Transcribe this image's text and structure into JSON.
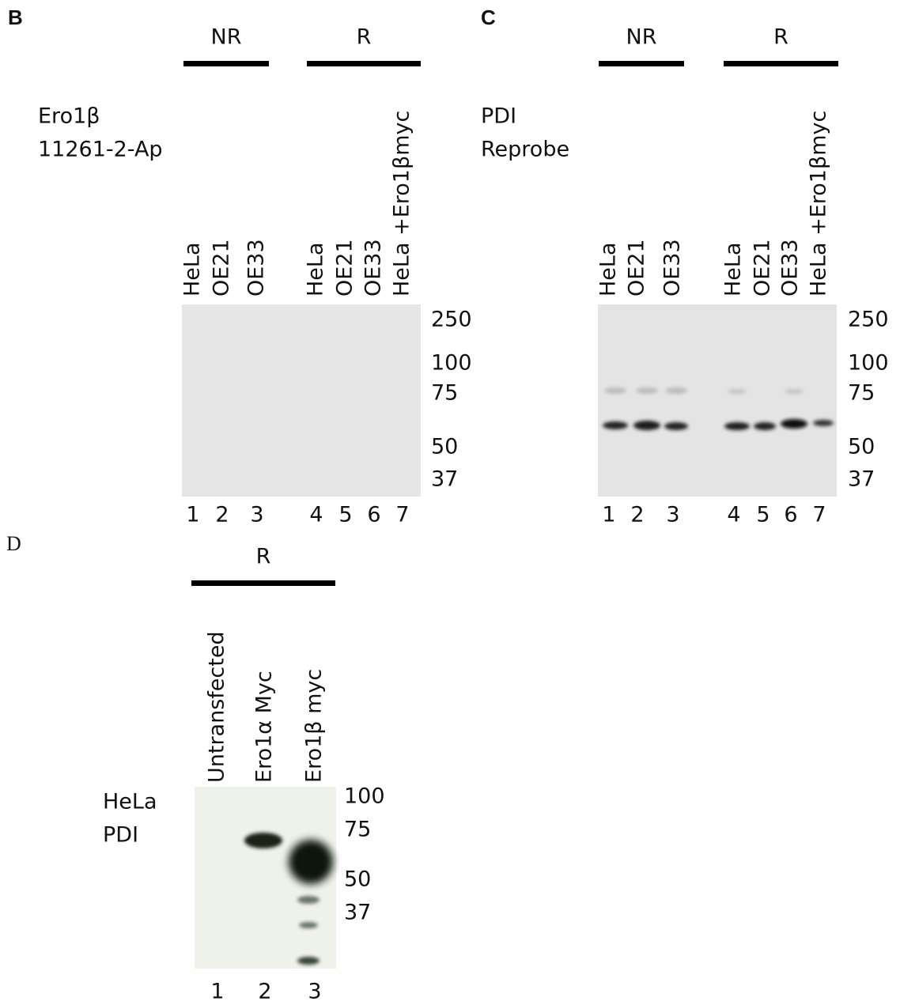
{
  "panels": [
    {
      "letter": "B",
      "probe": [
        "Ero1β",
        "11261-2-Ap"
      ],
      "groups": [
        "NR",
        "R"
      ],
      "lanes": [
        "HeLa",
        "OE21",
        "OE33",
        "HeLa",
        "OE21",
        "OE33",
        "HeLa +Ero1βmyc"
      ],
      "markers": [
        "250",
        "100",
        "75",
        "50",
        "37"
      ],
      "lane_numbers": [
        "1",
        "2",
        "3",
        "4",
        "5",
        "6",
        "7"
      ]
    },
    {
      "letter": "C",
      "probe": [
        "PDI",
        "Reprobe"
      ],
      "groups": [
        "NR",
        "R"
      ],
      "lanes": [
        "HeLa",
        "OE21",
        "OE33",
        "HeLa",
        "OE21",
        "OE33",
        "HeLa +Ero1βmyc"
      ],
      "markers": [
        "250",
        "100",
        "75",
        "50",
        "37"
      ],
      "lane_numbers": [
        "1",
        "2",
        "3",
        "4",
        "5",
        "6",
        "7"
      ]
    },
    {
      "letter": "D",
      "probe": [
        "HeLa",
        "PDI"
      ],
      "groups": [
        "R"
      ],
      "lanes": [
        "Untransfected",
        "Ero1α Myc",
        "Ero1β myc"
      ],
      "markers": [
        "100",
        "75",
        "50",
        "37"
      ],
      "lane_numbers": [
        "1",
        "2",
        "3"
      ]
    }
  ]
}
